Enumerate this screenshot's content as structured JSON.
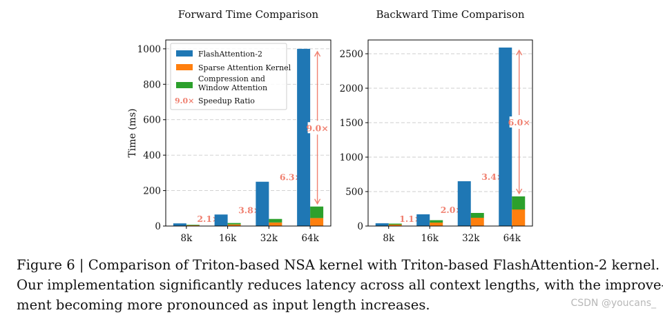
{
  "chart_data": [
    {
      "type": "bar",
      "title": "Forward Time Comparison",
      "ylabel": "Time (ms)",
      "categories": [
        "8k",
        "16k",
        "32k",
        "64k"
      ],
      "ylim": [
        0,
        1050
      ],
      "yticks": [
        0,
        200,
        400,
        600,
        800,
        1000
      ],
      "grid": true,
      "legend_position": "top-left",
      "series": [
        {
          "name": "FlashAttention-2",
          "color": "#1f77b4",
          "values": [
            15,
            65,
            250,
            1000
          ]
        },
        {
          "name": "Sparse Attention Kernel",
          "color": "#ff7f0e",
          "values": [
            4,
            9,
            20,
            45
          ]
        },
        {
          "name": "Compression and Window Attention",
          "color": "#2ca02c",
          "values": [
            3,
            8,
            20,
            65
          ]
        }
      ],
      "speedups": [
        "2.1×",
        "3.8×",
        "6.3×",
        "9.0×"
      ],
      "legend_sample": "9.0×",
      "legend_speedup_label": "Speedup Ratio"
    },
    {
      "type": "bar",
      "title": "Backward Time Comparison",
      "ylabel": "",
      "categories": [
        "8k",
        "16k",
        "32k",
        "64k"
      ],
      "ylim": [
        0,
        2700
      ],
      "yticks": [
        0,
        500,
        1000,
        1500,
        2000,
        2500
      ],
      "grid": true,
      "series": [
        {
          "name": "FlashAttention-2",
          "color": "#1f77b4",
          "values": [
            40,
            170,
            650,
            2590
          ]
        },
        {
          "name": "Sparse Attention Kernel",
          "color": "#ff7f0e",
          "values": [
            20,
            50,
            120,
            240
          ]
        },
        {
          "name": "Compression and Window Attention",
          "color": "#2ca02c",
          "values": [
            15,
            35,
            70,
            190
          ]
        }
      ],
      "speedups": [
        "1.1×",
        "2.0×",
        "3.4×",
        "6.0×"
      ]
    }
  ],
  "caption": {
    "lines": [
      "Figure 6 | Comparison of Triton-based NSA kernel with Triton-based FlashAttention-2 kernel.",
      "Our implementation significantly reduces latency across all context lengths, with the improve-",
      "ment becoming more pronounced as input length increases."
    ]
  },
  "watermark": "CSDN @youcans_",
  "colors": {
    "arrow": "#f08070",
    "grid": "#cccccc"
  }
}
